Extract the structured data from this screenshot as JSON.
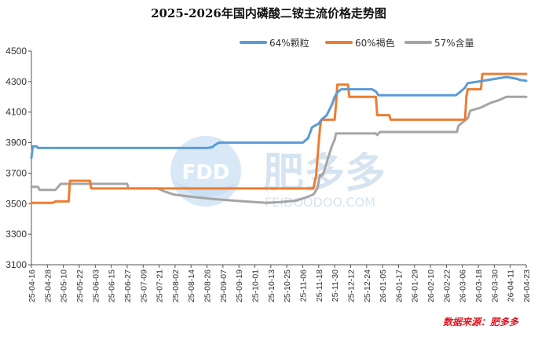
{
  "chart_data": {
    "type": "line",
    "title": "2025-2026年国内磷酸二铵主流价格走势图",
    "ylim": [
      3100,
      4500
    ],
    "yticks": [
      3100,
      3300,
      3500,
      3700,
      3900,
      4100,
      4300,
      4500
    ],
    "grid": false,
    "legend_position": "top-right",
    "x_tick_labels": [
      "25-04-16",
      "25-04-28",
      "25-05-10",
      "25-05-22",
      "25-06-03",
      "25-06-15",
      "25-06-27",
      "25-07-09",
      "25-07-21",
      "25-08-02",
      "25-08-14",
      "25-08-26",
      "25-09-07",
      "25-09-19",
      "25-10-01",
      "25-10-13",
      "25-10-25",
      "25-11-06",
      "25-11-18",
      "25-11-30",
      "25-12-12",
      "25-12-24",
      "26-01-05",
      "26-01-17",
      "26-01-29",
      "26-02-10",
      "26-02-22",
      "26-03-06",
      "26-03-18",
      "26-03-30",
      "26-04-11",
      "26-04-23"
    ],
    "series": [
      {
        "name": "64%颗粒",
        "color": "#5b9bd5",
        "points": [
          [
            "25-04-16",
            3800
          ],
          [
            "25-04-17",
            3875
          ],
          [
            "25-04-20",
            3875
          ],
          [
            "25-04-21",
            3865
          ],
          [
            "25-08-26",
            3865
          ],
          [
            "25-08-30",
            3870
          ],
          [
            "25-09-01",
            3885
          ],
          [
            "25-09-04",
            3900
          ],
          [
            "25-11-06",
            3900
          ],
          [
            "25-11-10",
            3930
          ],
          [
            "25-11-13",
            4000
          ],
          [
            "25-11-18",
            4025
          ],
          [
            "25-11-20",
            4050
          ],
          [
            "25-11-24",
            4080
          ],
          [
            "25-11-28",
            4150
          ],
          [
            "25-11-30",
            4200
          ],
          [
            "25-12-02",
            4230
          ],
          [
            "25-12-05",
            4250
          ],
          [
            "25-12-28",
            4250
          ],
          [
            "25-12-31",
            4235
          ],
          [
            "26-01-02",
            4210
          ],
          [
            "26-03-01",
            4210
          ],
          [
            "26-03-04",
            4230
          ],
          [
            "26-03-08",
            4260
          ],
          [
            "26-03-10",
            4290
          ],
          [
            "26-03-18",
            4300
          ],
          [
            "26-03-25",
            4310
          ],
          [
            "26-04-01",
            4320
          ],
          [
            "26-04-08",
            4330
          ],
          [
            "26-04-15",
            4320
          ],
          [
            "26-04-19",
            4310
          ],
          [
            "26-04-23",
            4305
          ]
        ]
      },
      {
        "name": "60%褐色",
        "color": "#ed7d31",
        "points": [
          [
            "25-04-16",
            3505
          ],
          [
            "25-05-02",
            3505
          ],
          [
            "25-05-04",
            3515
          ],
          [
            "25-05-14",
            3515
          ],
          [
            "25-05-15",
            3650
          ],
          [
            "25-05-30",
            3650
          ],
          [
            "25-05-31",
            3600
          ],
          [
            "25-11-14",
            3600
          ],
          [
            "25-11-16",
            3680
          ],
          [
            "25-11-18",
            3900
          ],
          [
            "25-11-19",
            4000
          ],
          [
            "25-11-20",
            4050
          ],
          [
            "25-11-30",
            4050
          ],
          [
            "25-12-01",
            4150
          ],
          [
            "25-12-02",
            4280
          ],
          [
            "25-12-10",
            4280
          ],
          [
            "25-12-11",
            4200
          ],
          [
            "25-12-31",
            4200
          ],
          [
            "26-01-01",
            4080
          ],
          [
            "26-01-10",
            4080
          ],
          [
            "26-01-11",
            4050
          ],
          [
            "26-03-08",
            4050
          ],
          [
            "26-03-09",
            4200
          ],
          [
            "26-03-10",
            4250
          ],
          [
            "26-03-20",
            4250
          ],
          [
            "26-03-21",
            4350
          ],
          [
            "26-04-23",
            4350
          ]
        ]
      },
      {
        "name": "57%含量",
        "color": "#a5a5a5",
        "points": [
          [
            "25-04-16",
            3610
          ],
          [
            "25-04-21",
            3610
          ],
          [
            "25-04-22",
            3590
          ],
          [
            "25-05-04",
            3590
          ],
          [
            "25-05-06",
            3610
          ],
          [
            "25-05-08",
            3630
          ],
          [
            "25-06-27",
            3630
          ],
          [
            "25-06-28",
            3600
          ],
          [
            "25-07-20",
            3600
          ],
          [
            "25-07-25",
            3580
          ],
          [
            "25-08-01",
            3560
          ],
          [
            "25-08-10",
            3550
          ],
          [
            "25-08-20",
            3540
          ],
          [
            "25-09-01",
            3530
          ],
          [
            "25-09-15",
            3520
          ],
          [
            "25-10-01",
            3510
          ],
          [
            "25-10-10",
            3505
          ],
          [
            "25-10-20",
            3510
          ],
          [
            "25-11-01",
            3520
          ],
          [
            "25-11-08",
            3540
          ],
          [
            "25-11-14",
            3560
          ],
          [
            "25-11-17",
            3600
          ],
          [
            "25-11-19",
            3690
          ],
          [
            "25-11-20",
            3680
          ],
          [
            "25-11-22",
            3710
          ],
          [
            "25-11-25",
            3800
          ],
          [
            "25-11-28",
            3880
          ],
          [
            "25-11-30",
            3920
          ],
          [
            "25-12-01",
            3960
          ],
          [
            "25-12-31",
            3960
          ],
          [
            "26-01-01",
            3950
          ],
          [
            "26-01-03",
            3970
          ],
          [
            "26-03-02",
            3970
          ],
          [
            "26-03-03",
            4010
          ],
          [
            "26-03-10",
            4060
          ],
          [
            "26-03-12",
            4110
          ],
          [
            "26-03-20",
            4130
          ],
          [
            "26-03-27",
            4160
          ],
          [
            "26-04-03",
            4180
          ],
          [
            "26-04-08",
            4200
          ],
          [
            "26-04-23",
            4200
          ]
        ]
      }
    ],
    "source_note": "数据来源：肥多多",
    "watermark": {
      "logo_text": "FDD",
      "name": "肥多多",
      "url": "FEIDOODOO.COM"
    }
  }
}
